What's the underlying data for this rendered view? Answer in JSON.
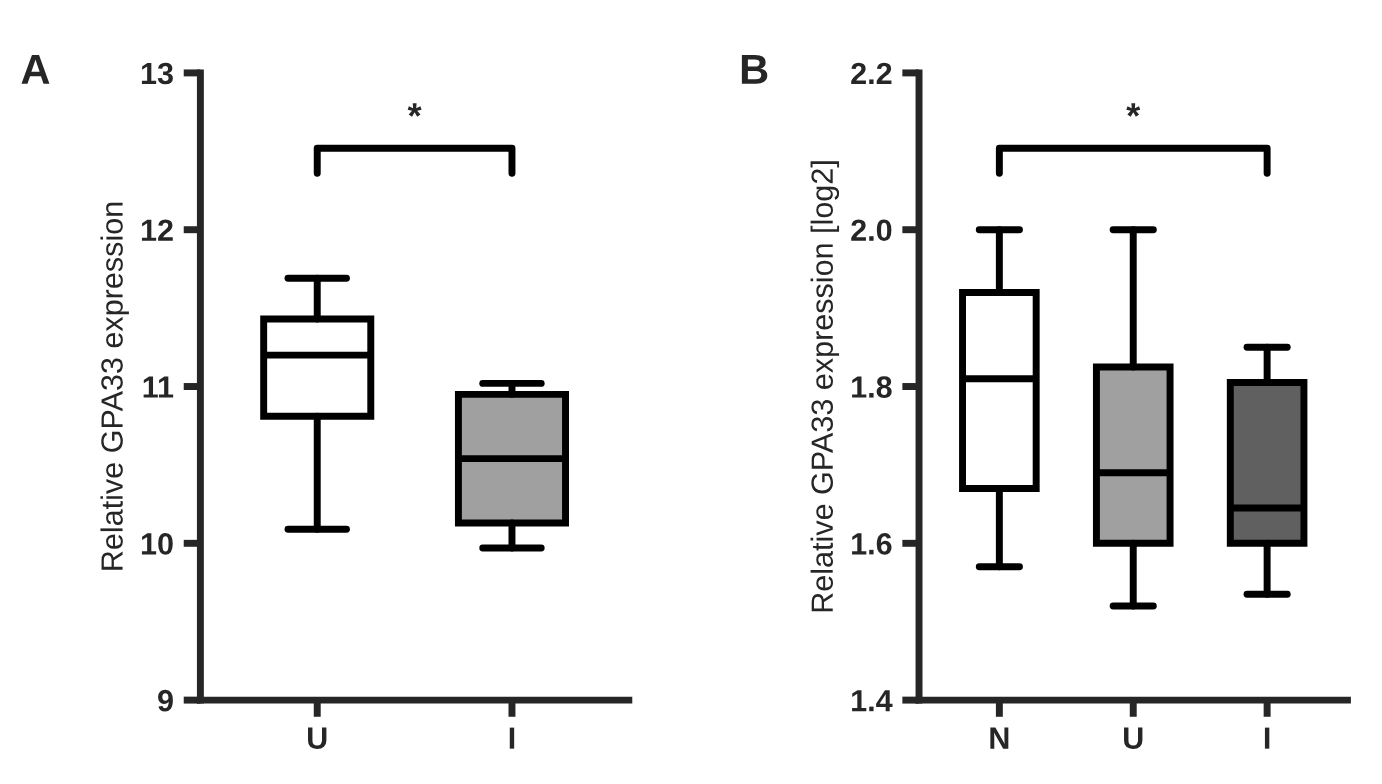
{
  "chart_data": [
    {
      "type": "box",
      "title": "A",
      "ylabel": "Relative GPA33 expression",
      "categories": [
        "U",
        "I"
      ],
      "ylim": [
        9,
        13
      ],
      "yticks": [
        9,
        10,
        11,
        12,
        13
      ],
      "colors": [
        "#ffffff",
        "#a0a0a0"
      ],
      "annotations": [
        "*"
      ],
      "grid": false,
      "legend": false,
      "boxes": [
        {
          "low": 10.09,
          "q1": 10.81,
          "median": 11.2,
          "q3": 11.43,
          "high": 11.69
        },
        {
          "low": 9.97,
          "q1": 10.13,
          "median": 10.54,
          "q3": 10.95,
          "high": 11.02
        }
      ]
    },
    {
      "type": "box",
      "title": "B",
      "ylabel": "Relative GPA33 expression [log2]",
      "categories": [
        "N",
        "U",
        "I"
      ],
      "ylim": [
        1.4,
        2.2
      ],
      "yticks": [
        {
          "value": 1.4,
          "label": "1.4"
        },
        {
          "value": 1.6,
          "label": "1.6"
        },
        {
          "value": 1.8,
          "label": "1.8"
        },
        {
          "value": 2.0,
          "label": "2.0"
        },
        {
          "value": 2.2,
          "label": "2.2"
        }
      ],
      "colors": [
        "#ffffff",
        "#a0a0a0",
        "#606060"
      ],
      "annotations": [
        "*"
      ],
      "grid": false,
      "legend": false,
      "boxes": [
        {
          "low": 1.57,
          "q1": 1.67,
          "median": 1.81,
          "q3": 1.92,
          "high": 2.0
        },
        {
          "low": 1.52,
          "q1": 1.6,
          "median": 1.69,
          "q3": 1.825,
          "high": 2.0
        },
        {
          "low": 1.535,
          "q1": 1.6,
          "median": 1.645,
          "q3": 1.805,
          "high": 1.85
        }
      ]
    }
  ]
}
